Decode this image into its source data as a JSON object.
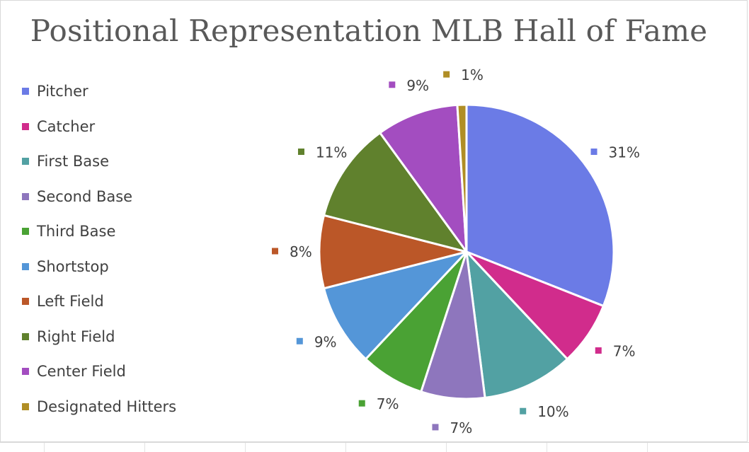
{
  "chart_data": {
    "type": "pie",
    "title": "Positional Representation MLB Hall of Fame",
    "legend_position": "left",
    "categories": [
      "Pitcher",
      "Catcher",
      "First Base",
      "Second Base",
      "Third Base",
      "Shortstop",
      "Left Field",
      "Right Field",
      "Center Field",
      "Designated Hitters"
    ],
    "values": [
      31,
      7,
      10,
      7,
      7,
      9,
      8,
      11,
      9,
      1
    ],
    "value_labels": [
      "31%",
      "7%",
      "10%",
      "7%",
      "7%",
      "9%",
      "8%",
      "11%",
      "9%",
      "1%"
    ],
    "colors": [
      "#6b7be6",
      "#d12c8c",
      "#52a1a3",
      "#8e76bd",
      "#4aa234",
      "#5496d8",
      "#bb5728",
      "#60812d",
      "#a34dc0",
      "#b08e25"
    ]
  }
}
